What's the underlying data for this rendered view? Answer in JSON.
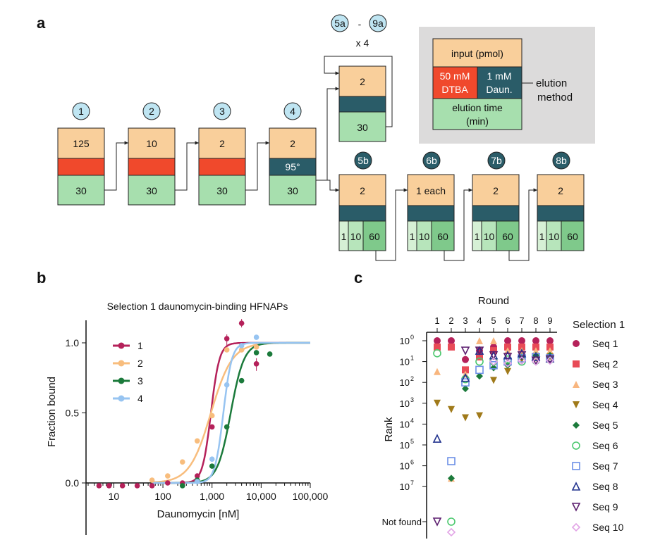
{
  "panel_labels": {
    "a": "a",
    "b": "b",
    "c": "c"
  },
  "colors": {
    "peach": "#f9cf9b",
    "red": "#f0492c",
    "teal": "#2a5c68",
    "green": "#a7dfae",
    "green_light": "#d6f0d5",
    "green_mid": "#b7e5bb",
    "green_dark": "#7fc98b",
    "circle_light": "#bfe5f2",
    "legend_box": "#dcdbdb"
  },
  "panel_a": {
    "rounds": [
      {
        "label": "1",
        "input": "125",
        "elution": "30"
      },
      {
        "label": "2",
        "input": "10",
        "elution": "30"
      },
      {
        "label": "3",
        "input": "2",
        "elution": "30"
      },
      {
        "label": "4",
        "input": "2",
        "temp": "95°",
        "elution": "30"
      }
    ],
    "branch_a": {
      "start_label": "5a",
      "dash": "-",
      "end_label": "9a",
      "repeat": "x 4",
      "input": "2",
      "elution": "30"
    },
    "branch_b": [
      {
        "label": "5b",
        "input": "2",
        "times": [
          "1",
          "10",
          "60"
        ]
      },
      {
        "label": "6b",
        "input": "1 each",
        "times": [
          "1",
          "10",
          "60"
        ]
      },
      {
        "label": "7b",
        "input": "2",
        "times": [
          "1",
          "10",
          "60"
        ]
      },
      {
        "label": "8b",
        "input": "2",
        "times": [
          "1",
          "10",
          "60"
        ]
      }
    ],
    "legend": {
      "input": "input (pmol)",
      "dtba_line1": "50 mM",
      "dtba_line2": "DTBA",
      "daun_line1": "1 mM",
      "daun_line2": "Daun.",
      "method_line1": "elution",
      "method_line2": "method",
      "time_line1": "elution time",
      "time_line2": "(min)"
    }
  },
  "panel_b": {
    "chart_data": {
      "type": "scatter",
      "title": "Selection 1 daunomycin-binding HFNAPs",
      "xlabel": "Daunomycin [nM]",
      "ylabel": "Fraction bound",
      "x_scale": "log",
      "xlim": [
        3,
        100000
      ],
      "ylim": [
        -0.05,
        1.2
      ],
      "x_ticks": [
        "10",
        "100",
        "1,000",
        "10,000",
        "100,000"
      ],
      "y_ticks": [
        "0.0",
        "0.5",
        "1.0"
      ],
      "legend_position": "top-left",
      "series": [
        {
          "name": "1",
          "color": "#b5215a",
          "kd": 950,
          "hill": 5,
          "points": [
            [
              5,
              -0.02
            ],
            [
              8,
              -0.02
            ],
            [
              15,
              -0.02
            ],
            [
              30,
              -0.02
            ],
            [
              60,
              -0.02
            ],
            [
              125,
              0.0
            ],
            [
              250,
              0.0
            ],
            [
              500,
              0.05
            ],
            [
              1000,
              0.4
            ],
            [
              2000,
              1.03
            ],
            [
              4000,
              1.14
            ],
            [
              8000,
              0.85
            ]
          ]
        },
        {
          "name": "2",
          "color": "#f8bd7d",
          "kd": 950,
          "hill": 2,
          "points": [
            [
              60,
              0.02
            ],
            [
              125,
              0.05
            ],
            [
              250,
              0.15
            ],
            [
              500,
              0.3
            ],
            [
              1000,
              0.48
            ],
            [
              2000,
              0.95
            ],
            [
              4000,
              0.95
            ],
            [
              8000,
              0.97
            ]
          ]
        },
        {
          "name": "3",
          "color": "#1b7a3b",
          "kd": 2400,
          "hill": 3.2,
          "points": [
            [
              250,
              -0.02
            ],
            [
              500,
              0.02
            ],
            [
              1000,
              0.12
            ],
            [
              2000,
              0.4
            ],
            [
              4000,
              0.73
            ],
            [
              8000,
              0.93
            ],
            [
              15000,
              0.92
            ]
          ]
        },
        {
          "name": "4",
          "color": "#97c4f1",
          "kd": 1700,
          "hill": 5,
          "points": [
            [
              500,
              0.01
            ],
            [
              1000,
              0.17
            ],
            [
              2000,
              0.7
            ],
            [
              4000,
              0.98
            ],
            [
              8000,
              1.04
            ]
          ]
        }
      ]
    }
  },
  "panel_c": {
    "chart_data": {
      "type": "scatter",
      "title": "Round",
      "xlabel": "Round",
      "ylabel": "Rank",
      "x_ticks": [
        "1",
        "2",
        "3",
        "4",
        "5",
        "6",
        "7",
        "8",
        "9"
      ],
      "y_scale": "log (inverted)",
      "y_tick_exponents": [
        "0",
        "1",
        "2",
        "3",
        "4",
        "5",
        "6",
        "7"
      ],
      "not_found_label": "Not found",
      "legend_title": "Selection 1",
      "legend_position": "right",
      "series": [
        {
          "name": "Seq 1",
          "marker": "circle",
          "color": "#b5215a",
          "points": [
            [
              1,
              1
            ],
            [
              2,
              1
            ],
            [
              3,
              8
            ],
            [
              4,
              3
            ],
            [
              5,
              2
            ],
            [
              6,
              1
            ],
            [
              7,
              1
            ],
            [
              8,
              1
            ],
            [
              9,
              1
            ]
          ]
        },
        {
          "name": "Seq 2",
          "marker": "square",
          "color": "#e84b57",
          "points": [
            [
              1,
              2
            ],
            [
              2,
              2
            ],
            [
              3,
              25
            ],
            [
              4,
              6
            ],
            [
              5,
              3
            ],
            [
              6,
              2
            ],
            [
              7,
              2
            ],
            [
              8,
              2
            ],
            [
              9,
              2
            ]
          ]
        },
        {
          "name": "Seq 3",
          "marker": "triangle",
          "color": "#f8b67f",
          "points": [
            [
              1,
              30
            ],
            [
              2,
              4000000
            ],
            [
              3,
              40
            ],
            [
              4,
              1
            ],
            [
              5,
              1
            ],
            [
              6,
              3
            ],
            [
              7,
              3
            ],
            [
              8,
              3
            ],
            [
              9,
              3
            ]
          ]
        },
        {
          "name": "Seq 4",
          "marker": "triangle-down",
          "color": "#a07a1a",
          "points": [
            [
              1,
              1000
            ],
            [
              2,
              2000
            ],
            [
              3,
              5000
            ],
            [
              4,
              4000
            ],
            [
              5,
              80
            ],
            [
              6,
              30
            ],
            [
              7,
              8
            ],
            [
              8,
              7
            ],
            [
              9,
              6
            ]
          ]
        },
        {
          "name": "Seq 5",
          "marker": "diamond",
          "color": "#1b7a3b",
          "points": [
            [
              1,
              null
            ],
            [
              2,
              4000000
            ],
            [
              3,
              200
            ],
            [
              4,
              50
            ],
            [
              5,
              20
            ],
            [
              6,
              15
            ],
            [
              7,
              6
            ],
            [
              8,
              5
            ],
            [
              9,
              5
            ]
          ]
        },
        {
          "name": "Seq 6",
          "marker": "circle-open",
          "color": "#4bc86e",
          "points": [
            [
              1,
              4
            ],
            [
              2,
              "not found"
            ],
            [
              3,
              70
            ],
            [
              4,
              10
            ],
            [
              5,
              10
            ],
            [
              6,
              8
            ],
            [
              7,
              10
            ],
            [
              8,
              9
            ],
            [
              9,
              8
            ]
          ]
        },
        {
          "name": "Seq 7",
          "marker": "square-open",
          "color": "#6c8fe6",
          "points": [
            [
              1,
              null
            ],
            [
              2,
              600000
            ],
            [
              3,
              100
            ],
            [
              4,
              25
            ],
            [
              5,
              15
            ],
            [
              6,
              10
            ],
            [
              7,
              7
            ],
            [
              8,
              6
            ],
            [
              9,
              7
            ]
          ]
        },
        {
          "name": "Seq 8",
          "marker": "triangle-open",
          "color": "#22338e",
          "points": [
            [
              1,
              50000
            ],
            [
              2,
              null
            ],
            [
              3,
              60
            ],
            [
              4,
              3
            ],
            [
              5,
              5
            ],
            [
              6,
              5
            ],
            [
              7,
              4
            ],
            [
              8,
              6
            ],
            [
              9,
              7
            ]
          ]
        },
        {
          "name": "Seq 9",
          "marker": "triangle-down-open",
          "color": "#5b1d6e",
          "points": [
            [
              1,
              "not found"
            ],
            [
              2,
              null
            ],
            [
              3,
              3
            ],
            [
              4,
              3
            ],
            [
              5,
              5
            ],
            [
              6,
              6
            ],
            [
              7,
              5
            ],
            [
              8,
              9
            ],
            [
              9,
              8
            ]
          ]
        },
        {
          "name": "Seq 10",
          "marker": "diamond-open",
          "color": "#e2a4e6",
          "points": [
            [
              1,
              null
            ],
            [
              2,
              "not found"
            ],
            [
              3,
              null
            ],
            [
              4,
              null
            ],
            [
              5,
              10
            ],
            [
              6,
              12
            ],
            [
              7,
              9
            ],
            [
              8,
              10
            ],
            [
              9,
              9
            ]
          ]
        }
      ]
    }
  }
}
